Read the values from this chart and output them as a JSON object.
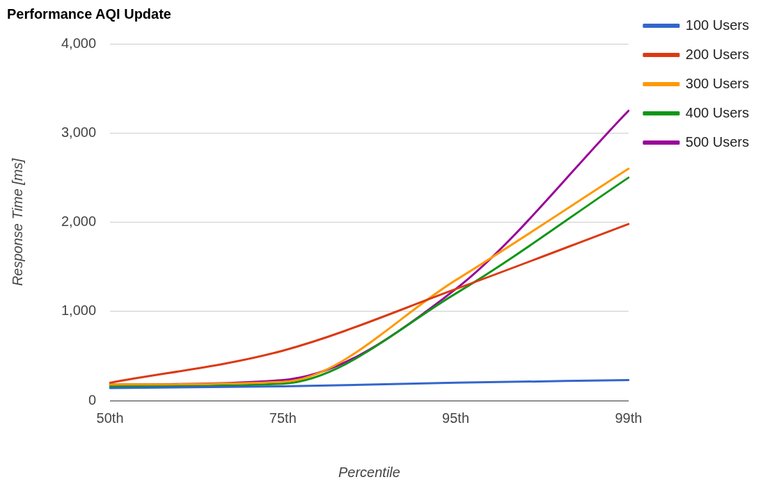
{
  "chart_data": {
    "type": "line",
    "title": "Performance AQI Update",
    "xlabel": "Percentile",
    "ylabel": "Response Time [ms]",
    "categories": [
      "50th",
      "75th",
      "95th",
      "99th"
    ],
    "series": [
      {
        "name": "100 Users",
        "color": "#3366cc",
        "values": [
          140,
          160,
          200,
          230
        ]
      },
      {
        "name": "200 Users",
        "color": "#dc3912",
        "values": [
          200,
          560,
          1250,
          1980
        ]
      },
      {
        "name": "300 Users",
        "color": "#ff9900",
        "values": [
          180,
          210,
          1350,
          2600
        ]
      },
      {
        "name": "400 Users",
        "color": "#109618",
        "values": [
          160,
          190,
          1200,
          2500
        ]
      },
      {
        "name": "500 Users",
        "color": "#990099",
        "values": [
          180,
          230,
          1250,
          3250
        ]
      }
    ],
    "ylim": [
      0,
      4000
    ],
    "yticks": [
      {
        "value": 0,
        "label": "0"
      },
      {
        "value": 1000,
        "label": "1,000"
      },
      {
        "value": 2000,
        "label": "2,000"
      },
      {
        "value": 3000,
        "label": "3,000"
      },
      {
        "value": 4000,
        "label": "4,000"
      }
    ],
    "grid": "y",
    "legend": "right",
    "marker": "none",
    "line_style": "solid"
  }
}
